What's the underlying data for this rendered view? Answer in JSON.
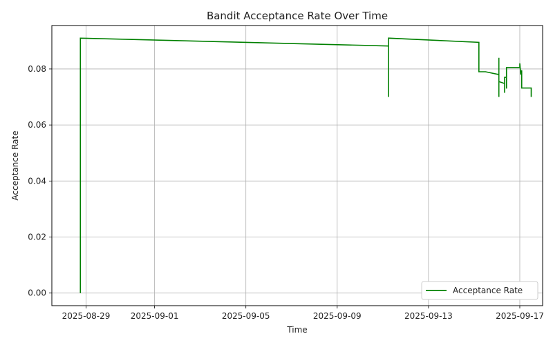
{
  "chart_data": {
    "type": "line",
    "title": "Bandit Acceptance Rate Over Time",
    "xlabel": "Time",
    "ylabel": "Acceptance Rate",
    "x_ticks": [
      "2025-08-29",
      "2025-09-01",
      "2025-09-05",
      "2025-09-09",
      "2025-09-13",
      "2025-09-17"
    ],
    "y_ticks": [
      "0.00",
      "0.02",
      "0.04",
      "0.06",
      "0.08"
    ],
    "xlim": [
      "2025-08-27T12:00",
      "2025-09-18T00:00"
    ],
    "ylim": [
      -0.0045,
      0.0955
    ],
    "grid": true,
    "legend_position": "lower right",
    "color": "#008000",
    "series": [
      {
        "name": "Acceptance Rate",
        "points": [
          [
            "2025-08-28T18:00",
            0.0
          ],
          [
            "2025-08-28T18:00",
            0.091
          ],
          [
            "2025-09-11T06:00",
            0.0882
          ],
          [
            "2025-09-11T06:00",
            0.07
          ],
          [
            "2025-09-11T06:00",
            0.091
          ],
          [
            "2025-09-15T05:00",
            0.0895
          ],
          [
            "2025-09-15T05:00",
            0.079
          ],
          [
            "2025-09-15T12:00",
            0.079
          ],
          [
            "2025-09-16T02:00",
            0.078
          ],
          [
            "2025-09-16T02:00",
            0.07
          ],
          [
            "2025-09-16T02:00",
            0.084
          ],
          [
            "2025-09-16T02:00",
            0.0755
          ],
          [
            "2025-09-16T08:00",
            0.0748
          ],
          [
            "2025-09-16T08:00",
            0.0715
          ],
          [
            "2025-09-16T08:00",
            0.077
          ],
          [
            "2025-09-16T10:00",
            0.077
          ],
          [
            "2025-09-16T10:00",
            0.073
          ],
          [
            "2025-09-16T10:00",
            0.0805
          ],
          [
            "2025-09-17T00:00",
            0.0805
          ],
          [
            "2025-09-17T00:00",
            0.082
          ],
          [
            "2025-09-17T01:00",
            0.078
          ],
          [
            "2025-09-17T02:00",
            0.0795
          ],
          [
            "2025-09-17T02:00",
            0.0732
          ],
          [
            "2025-09-17T12:00",
            0.0732
          ],
          [
            "2025-09-17T12:00",
            0.07
          ]
        ]
      }
    ]
  }
}
